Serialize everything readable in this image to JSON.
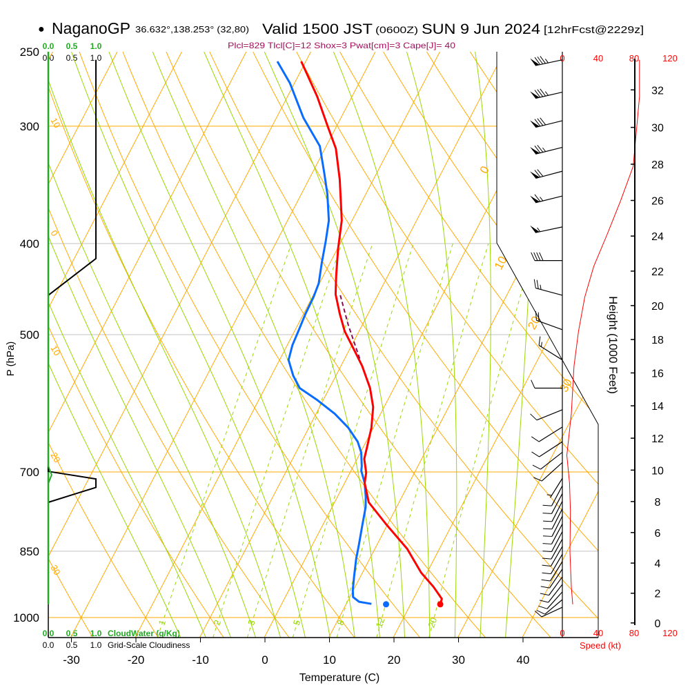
{
  "header": {
    "bullet": "●",
    "station": "NaganoGP",
    "coords": "36.632°,138.253° (32,80)",
    "valid": "Valid 1500 JST",
    "utc": "(0600Z)",
    "date": "SUN 9 Jun 2024",
    "forecast": "[12hrFcst@2229z]"
  },
  "indices": "Plcl=829 Tlcl[C]=12 Shox=3 Pwat[cm]=3 Cape[J]= 40",
  "panels": {
    "cloudwater_ticks": [
      "0.0",
      "0.5",
      "1.0"
    ],
    "cloudwater_label": "CloudWater (g/Kg)",
    "cloudiness_ticks": [
      "0.0",
      "0.5",
      "1.0"
    ],
    "cloudiness_label": "Grid-Scale Cloudiness"
  },
  "colors": {
    "temperature": "#ff0000",
    "dewpoint": "#0a6cff",
    "parcel": "#8b0a50",
    "isotherm": "#ffaa00",
    "moist_adiabat": "#99d800",
    "mixing_ratio": "#99d800",
    "cloudwater": "#22aa22",
    "speed": "#ff0000",
    "indices": "#a3105c"
  },
  "chart_data": {
    "type": "skewt",
    "xlabel": "Temperature (C)",
    "ylabel": "P (hPa)",
    "x_ticks": [
      -30,
      -20,
      -10,
      0,
      10,
      20,
      30,
      40
    ],
    "y_ticks": [
      250,
      300,
      400,
      500,
      700,
      850,
      1000
    ],
    "ylim": [
      1050,
      250
    ],
    "isobars_major": [
      300,
      700,
      1000
    ],
    "isobars_minor": [
      400,
      500,
      850
    ],
    "isotherm_labels": [
      "0",
      "10",
      "20",
      "30"
    ],
    "dry_adiabat_labels": [
      "10",
      "0",
      "10",
      "20",
      "30"
    ],
    "mixing_ratio_lines": [
      1,
      2,
      3,
      5,
      8,
      12,
      20
    ],
    "temperature": [
      [
        256,
        -40.7
      ],
      [
        279,
        -35.4
      ],
      [
        300,
        -31.4
      ],
      [
        317,
        -28.3
      ],
      [
        342,
        -25.2
      ],
      [
        378,
        -21.6
      ],
      [
        405,
        -19.9
      ],
      [
        433,
        -18.0
      ],
      [
        453,
        -16.6
      ],
      [
        475,
        -14.4
      ],
      [
        496,
        -12.2
      ],
      [
        517,
        -9.5
      ],
      [
        540,
        -6.7
      ],
      [
        570,
        -3.7
      ],
      [
        597,
        -1.7
      ],
      [
        628,
        -0.3
      ],
      [
        659,
        0.6
      ],
      [
        678,
        1.1
      ],
      [
        701,
        2.5
      ],
      [
        719,
        3.1
      ],
      [
        754,
        5.3
      ],
      [
        796,
        9.8
      ],
      [
        845,
        15.0
      ],
      [
        896,
        19.1
      ],
      [
        927,
        22.1
      ],
      [
        955,
        24.4
      ],
      [
        968,
        24.6
      ]
    ],
    "dewpoint": [
      [
        256,
        -44.4
      ],
      [
        270,
        -40.7
      ],
      [
        294,
        -35.8
      ],
      [
        315,
        -31.0
      ],
      [
        336,
        -28.2
      ],
      [
        354,
        -26.0
      ],
      [
        378,
        -23.6
      ],
      [
        398,
        -22.4
      ],
      [
        419,
        -21.3
      ],
      [
        441,
        -20.1
      ],
      [
        456,
        -19.8
      ],
      [
        475,
        -19.7
      ],
      [
        496,
        -19.4
      ],
      [
        513,
        -19.2
      ],
      [
        532,
        -18.6
      ],
      [
        553,
        -16.6
      ],
      [
        570,
        -14.6
      ],
      [
        587,
        -10.9
      ],
      [
        607,
        -7.1
      ],
      [
        628,
        -3.9
      ],
      [
        650,
        -1.3
      ],
      [
        667,
        0.1
      ],
      [
        690,
        1.3
      ],
      [
        698,
        1.6
      ],
      [
        719,
        3.1
      ],
      [
        744,
        4.4
      ],
      [
        763,
        5.2
      ],
      [
        796,
        6.1
      ],
      [
        837,
        7.2
      ],
      [
        866,
        7.9
      ],
      [
        904,
        9.0
      ],
      [
        935,
        9.9
      ],
      [
        951,
        10.5
      ],
      [
        962,
        11.8
      ],
      [
        967,
        13.9
      ]
    ],
    "parcel": [
      [
        454,
        -15.8
      ],
      [
        488,
        -12.2
      ],
      [
        532,
        -7.5
      ]
    ],
    "surface": {
      "p": 968,
      "T": 24.6,
      "Td": 16.2
    },
    "winds": [
      {
        "p": 255,
        "dir": 258,
        "spd": 85
      },
      {
        "p": 276,
        "dir": 257,
        "spd": 85
      },
      {
        "p": 296,
        "dir": 256,
        "spd": 80
      },
      {
        "p": 316,
        "dir": 256,
        "spd": 75
      },
      {
        "p": 335,
        "dir": 255,
        "spd": 70
      },
      {
        "p": 356,
        "dir": 256,
        "spd": 65
      },
      {
        "p": 384,
        "dir": 258,
        "spd": 55
      },
      {
        "p": 417,
        "dir": 270,
        "spd": 40
      },
      {
        "p": 454,
        "dir": 285,
        "spd": 25
      },
      {
        "p": 494,
        "dir": 290,
        "spd": 20
      },
      {
        "p": 532,
        "dir": 302,
        "spd": 15
      },
      {
        "p": 570,
        "dir": 270,
        "spd": 10
      },
      {
        "p": 601,
        "dir": 248,
        "spd": 10
      },
      {
        "p": 627,
        "dir": 238,
        "spd": 10
      },
      {
        "p": 650,
        "dir": 237,
        "spd": 10
      },
      {
        "p": 667,
        "dir": 232,
        "spd": 10
      },
      {
        "p": 684,
        "dir": 228,
        "spd": 10
      },
      {
        "p": 711,
        "dir": 212,
        "spd": 5
      },
      {
        "p": 724,
        "dir": 208,
        "spd": 10
      },
      {
        "p": 738,
        "dir": 208,
        "spd": 10
      },
      {
        "p": 752,
        "dir": 207,
        "spd": 10
      },
      {
        "p": 766,
        "dir": 207,
        "spd": 10
      },
      {
        "p": 780,
        "dir": 207,
        "spd": 10
      },
      {
        "p": 795,
        "dir": 208,
        "spd": 10
      },
      {
        "p": 810,
        "dir": 208,
        "spd": 10
      },
      {
        "p": 825,
        "dir": 209,
        "spd": 10
      },
      {
        "p": 840,
        "dir": 210,
        "spd": 10
      },
      {
        "p": 856,
        "dir": 210,
        "spd": 10
      },
      {
        "p": 872,
        "dir": 212,
        "spd": 10
      },
      {
        "p": 888,
        "dir": 214,
        "spd": 10
      },
      {
        "p": 905,
        "dir": 216,
        "spd": 10
      },
      {
        "p": 922,
        "dir": 218,
        "spd": 10
      },
      {
        "p": 939,
        "dir": 222,
        "spd": 10
      },
      {
        "p": 957,
        "dir": 230,
        "spd": 10
      },
      {
        "p": 975,
        "dir": 245,
        "spd": 10
      }
    ],
    "wind_speed": [
      [
        255,
        86
      ],
      [
        279,
        86
      ],
      [
        331,
        79
      ],
      [
        360,
        65
      ],
      [
        391,
        50
      ],
      [
        423,
        35
      ],
      [
        456,
        25
      ],
      [
        496,
        18
      ],
      [
        540,
        13
      ],
      [
        607,
        10
      ],
      [
        672,
        5
      ],
      [
        719,
        8
      ],
      [
        770,
        9
      ],
      [
        851,
        8.5
      ],
      [
        927,
        10
      ],
      [
        968,
        11.5
      ]
    ],
    "speed_axis": {
      "label": "Speed (kt)",
      "ticks": [
        "0",
        "40",
        "80",
        "120"
      ]
    },
    "height_axis": {
      "label": "Height (1000 Feet)",
      "ticks": [
        0,
        2,
        4,
        6,
        8,
        10,
        12,
        14,
        16,
        18,
        20,
        22,
        24,
        26,
        28,
        30,
        32
      ]
    },
    "cloudiness": [
      [
        255,
        1.0
      ],
      [
        415,
        1.0
      ],
      [
        454,
        0
      ],
      [
        699,
        0
      ],
      [
        712,
        1.0
      ],
      [
        727,
        1.0
      ],
      [
        739,
        0.55
      ],
      [
        754,
        0
      ]
    ],
    "cloudwater": [
      [
        255,
        0
      ],
      [
        690,
        0
      ],
      [
        705,
        0.07
      ],
      [
        720,
        0
      ],
      [
        968,
        0
      ]
    ]
  }
}
